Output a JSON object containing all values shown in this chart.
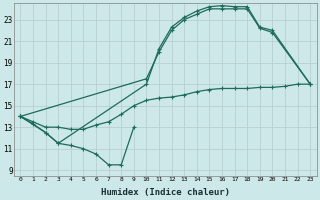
{
  "xlabel": "Humidex (Indice chaleur)",
  "bg_color": "#cce8e8",
  "grid_color": "#b8d0d0",
  "line_color": "#1e6b5a",
  "xlim": [
    -0.5,
    23.5
  ],
  "ylim": [
    8.5,
    24.5
  ],
  "xticks": [
    0,
    1,
    2,
    3,
    4,
    5,
    6,
    7,
    8,
    9,
    10,
    11,
    12,
    13,
    14,
    15,
    16,
    17,
    18,
    19,
    20,
    21,
    22,
    23
  ],
  "yticks": [
    9,
    11,
    13,
    15,
    17,
    19,
    21,
    23
  ],
  "line1_x": [
    0,
    1,
    2,
    3,
    4,
    5,
    6,
    7,
    8,
    9
  ],
  "line1_y": [
    14.0,
    13.3,
    12.5,
    11.5,
    11.3,
    11.0,
    10.5,
    9.5,
    9.5,
    13.0
  ],
  "line2_x": [
    0,
    2,
    3,
    10,
    11,
    12,
    13,
    14,
    15,
    16,
    17,
    18,
    19,
    20,
    23
  ],
  "line2_y": [
    14.0,
    12.5,
    11.5,
    17.0,
    20.3,
    22.3,
    23.2,
    23.8,
    24.2,
    24.3,
    24.2,
    24.2,
    22.3,
    22.0,
    17.0
  ],
  "line3_x": [
    0,
    10,
    11,
    12,
    13,
    14,
    15,
    16,
    17,
    18,
    19,
    20,
    23
  ],
  "line3_y": [
    14.0,
    17.5,
    20.0,
    22.0,
    23.0,
    23.5,
    24.0,
    24.0,
    24.0,
    24.0,
    22.2,
    21.8,
    17.0
  ],
  "line4_x": [
    0,
    1,
    2,
    3,
    4,
    5,
    6,
    7,
    8,
    9,
    10,
    11,
    12,
    13,
    14,
    15,
    16,
    17,
    18,
    19,
    20,
    21,
    22,
    23
  ],
  "line4_y": [
    14.0,
    13.5,
    13.0,
    13.0,
    12.8,
    12.8,
    13.2,
    13.5,
    14.2,
    15.0,
    15.5,
    15.7,
    15.8,
    16.0,
    16.3,
    16.5,
    16.6,
    16.6,
    16.6,
    16.7,
    16.7,
    16.8,
    17.0,
    17.0
  ]
}
